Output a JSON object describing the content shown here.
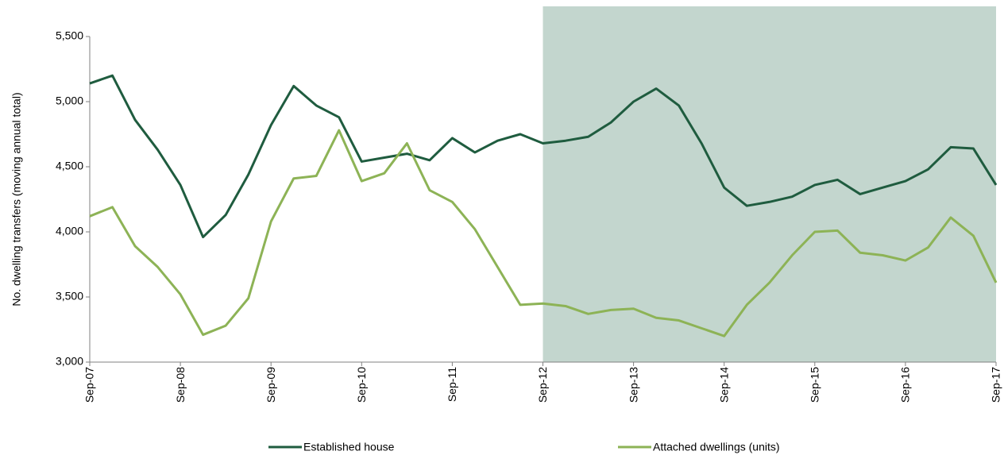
{
  "chart_data": {
    "type": "line",
    "y_label": "No. dwelling transfers (moving annual total)",
    "categories": [
      "Sep-07",
      null,
      null,
      null,
      "Sep-08",
      null,
      null,
      null,
      "Sep-09",
      null,
      null,
      null,
      "Sep-10",
      null,
      null,
      null,
      "Sep-11",
      null,
      null,
      null,
      "Sep-12",
      null,
      null,
      null,
      "Sep-13",
      null,
      null,
      null,
      "Sep-14",
      null,
      null,
      null,
      "Sep-15",
      null,
      null,
      null,
      "Sep-16",
      null,
      null,
      null,
      "Sep-17"
    ],
    "series": [
      {
        "name": "Established house",
        "color": "#1f5c3f",
        "values": [
          5140,
          5200,
          4860,
          4630,
          4360,
          3960,
          4130,
          4440,
          4820,
          5120,
          4970,
          4880,
          4540,
          4570,
          4600,
          4550,
          4720,
          4610,
          4700,
          4750,
          4680,
          4700,
          4730,
          4840,
          5000,
          5100,
          4970,
          4680,
          4340,
          4200,
          4230,
          4270,
          4360,
          4400,
          4290,
          4340,
          4390,
          4480,
          4650,
          4640,
          4360
        ]
      },
      {
        "name": "Attached dwellings (units)",
        "color": "#8db356",
        "values": [
          4120,
          4190,
          3890,
          3730,
          3520,
          3210,
          3280,
          3490,
          4080,
          4410,
          4430,
          4780,
          4390,
          4450,
          4680,
          4320,
          4230,
          4020,
          3730,
          3440,
          3450,
          3430,
          3370,
          3400,
          3410,
          3340,
          3320,
          3260,
          3200,
          3440,
          3610,
          3820,
          4000,
          4010,
          3840,
          3820,
          3780,
          3880,
          4110,
          3970,
          3610
        ]
      }
    ],
    "ylim": [
      3000,
      5500
    ],
    "yticks": [
      {
        "value": 3000,
        "label": "3,000"
      },
      {
        "value": 3500,
        "label": "3,500"
      },
      {
        "value": 4000,
        "label": "4,000"
      },
      {
        "value": 4500,
        "label": "4,500"
      },
      {
        "value": 5000,
        "label": "5,000"
      },
      {
        "value": 5500,
        "label": "5,500"
      }
    ],
    "grid": false,
    "legend": "bottom",
    "shaded": {
      "from": 20,
      "to": 40,
      "color": "#c3d6ce"
    }
  }
}
